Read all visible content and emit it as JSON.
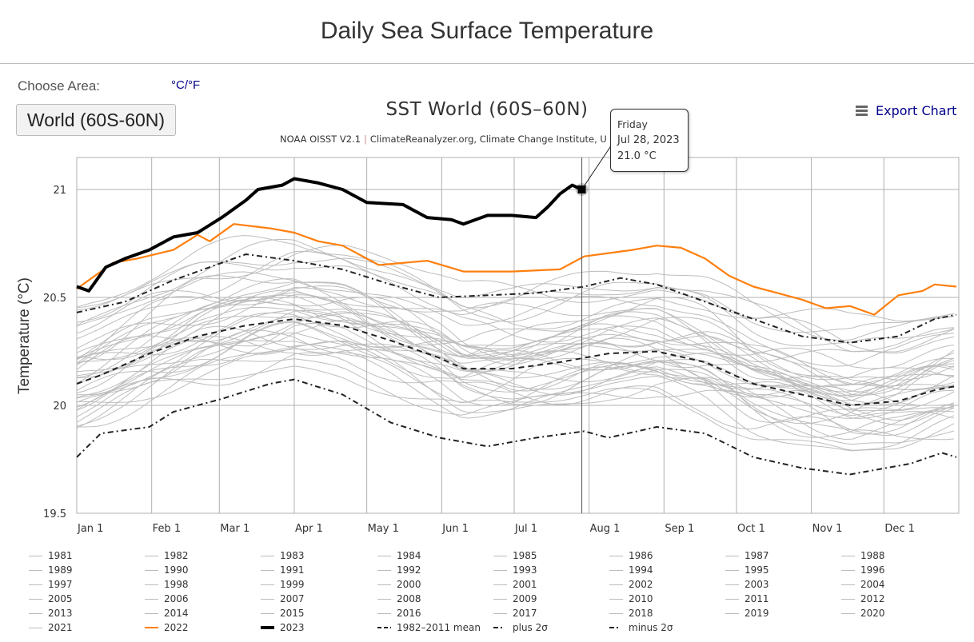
{
  "page": {
    "title": "Daily Sea Surface Temperature",
    "choose_area_label": "Choose Area:",
    "unit_toggle": "°C/°F",
    "area_button": "World (60S-60N)",
    "export_label": "Export Chart"
  },
  "tooltip": {
    "weekday": "Friday",
    "date": "Jul 28, 2023",
    "value": "21.0 °C",
    "day_of_year": 209,
    "temperature": 21.0
  },
  "colors": {
    "gray_years": "#bdbdbd",
    "year_2022": "#ff7f0e",
    "year_2023": "#000000",
    "stat_lines": "#222222",
    "grid": "#b0b0b0"
  },
  "chart_data": {
    "type": "line",
    "title": "SST World (60S–60N)",
    "subtitle_parts": [
      "NOAA OISST V2.1",
      "ClimateReanalyzer.org, Climate Change Institute, U"
    ],
    "xlabel": "",
    "ylabel": "Temperature (°C)",
    "ylim": [
      19.5,
      21.15
    ],
    "xlim_day_of_year": [
      0,
      365
    ],
    "y_ticks": [
      19.5,
      20,
      20.5,
      21
    ],
    "y_tick_labels": [
      "19.5",
      "20",
      "20.5",
      "21"
    ],
    "x_ticks": [
      {
        "label": "Jan 1",
        "day": 0
      },
      {
        "label": "Feb 1",
        "day": 31
      },
      {
        "label": "Mar 1",
        "day": 59
      },
      {
        "label": "Apr 1",
        "day": 90
      },
      {
        "label": "May 1",
        "day": 120
      },
      {
        "label": "Jun 1",
        "day": 151
      },
      {
        "label": "Jul 1",
        "day": 181
      },
      {
        "label": "Aug 1",
        "day": 212
      },
      {
        "label": "Sep 1",
        "day": 243
      },
      {
        "label": "Oct 1",
        "day": 273
      },
      {
        "label": "Nov 1",
        "day": 304
      },
      {
        "label": "Dec 1",
        "day": 334
      }
    ],
    "grid": true,
    "legend_position": "bottom",
    "series": [
      {
        "name": "2023",
        "style": "solid-thick",
        "color": "#000000",
        "points": [
          [
            0,
            20.55
          ],
          [
            5,
            20.53
          ],
          [
            12,
            20.64
          ],
          [
            20,
            20.68
          ],
          [
            30,
            20.72
          ],
          [
            40,
            20.78
          ],
          [
            50,
            20.8
          ],
          [
            60,
            20.87
          ],
          [
            70,
            20.95
          ],
          [
            75,
            21.0
          ],
          [
            85,
            21.02
          ],
          [
            90,
            21.05
          ],
          [
            100,
            21.03
          ],
          [
            110,
            21.0
          ],
          [
            120,
            20.94
          ],
          [
            135,
            20.93
          ],
          [
            145,
            20.87
          ],
          [
            155,
            20.86
          ],
          [
            160,
            20.84
          ],
          [
            170,
            20.88
          ],
          [
            180,
            20.88
          ],
          [
            190,
            20.87
          ],
          [
            195,
            20.92
          ],
          [
            200,
            20.98
          ],
          [
            205,
            21.02
          ],
          [
            209,
            21.0
          ]
        ]
      },
      {
        "name": "2022",
        "style": "solid",
        "color": "#ff7f0e",
        "points": [
          [
            0,
            20.54
          ],
          [
            10,
            20.62
          ],
          [
            15,
            20.66
          ],
          [
            25,
            20.68
          ],
          [
            40,
            20.72
          ],
          [
            50,
            20.79
          ],
          [
            55,
            20.76
          ],
          [
            65,
            20.84
          ],
          [
            80,
            20.82
          ],
          [
            90,
            20.8
          ],
          [
            100,
            20.76
          ],
          [
            110,
            20.74
          ],
          [
            125,
            20.65
          ],
          [
            145,
            20.67
          ],
          [
            160,
            20.62
          ],
          [
            180,
            20.62
          ],
          [
            200,
            20.63
          ],
          [
            210,
            20.69
          ],
          [
            230,
            20.72
          ],
          [
            240,
            20.74
          ],
          [
            250,
            20.73
          ],
          [
            260,
            20.68
          ],
          [
            270,
            20.6
          ],
          [
            280,
            20.55
          ],
          [
            290,
            20.52
          ],
          [
            300,
            20.49
          ],
          [
            310,
            20.45
          ],
          [
            320,
            20.46
          ],
          [
            330,
            20.42
          ],
          [
            340,
            20.51
          ],
          [
            350,
            20.53
          ],
          [
            355,
            20.56
          ],
          [
            364,
            20.55
          ]
        ]
      },
      {
        "name": "1982-2011 mean",
        "style": "dash",
        "color": "#222222",
        "points": [
          [
            0,
            20.1
          ],
          [
            10,
            20.14
          ],
          [
            30,
            20.24
          ],
          [
            50,
            20.32
          ],
          [
            70,
            20.37
          ],
          [
            90,
            20.4
          ],
          [
            110,
            20.37
          ],
          [
            130,
            20.3
          ],
          [
            150,
            20.22
          ],
          [
            160,
            20.17
          ],
          [
            180,
            20.17
          ],
          [
            200,
            20.2
          ],
          [
            220,
            20.24
          ],
          [
            240,
            20.25
          ],
          [
            260,
            20.2
          ],
          [
            280,
            20.1
          ],
          [
            300,
            20.05
          ],
          [
            320,
            20.0
          ],
          [
            340,
            20.02
          ],
          [
            355,
            20.07
          ],
          [
            364,
            20.09
          ]
        ]
      },
      {
        "name": "plus 2σ",
        "style": "dashdot",
        "color": "#222222",
        "points": [
          [
            0,
            20.43
          ],
          [
            20,
            20.48
          ],
          [
            40,
            20.58
          ],
          [
            60,
            20.66
          ],
          [
            70,
            20.7
          ],
          [
            90,
            20.67
          ],
          [
            110,
            20.63
          ],
          [
            130,
            20.56
          ],
          [
            150,
            20.5
          ],
          [
            170,
            20.51
          ],
          [
            190,
            20.52
          ],
          [
            210,
            20.55
          ],
          [
            225,
            20.59
          ],
          [
            240,
            20.56
          ],
          [
            260,
            20.48
          ],
          [
            280,
            20.4
          ],
          [
            300,
            20.32
          ],
          [
            320,
            20.29
          ],
          [
            340,
            20.32
          ],
          [
            355,
            20.4
          ],
          [
            364,
            20.42
          ]
        ]
      },
      {
        "name": "minus 2σ",
        "style": "dashdot",
        "color": "#222222",
        "points": [
          [
            0,
            19.76
          ],
          [
            10,
            19.87
          ],
          [
            30,
            19.9
          ],
          [
            40,
            19.97
          ],
          [
            60,
            20.03
          ],
          [
            80,
            20.1
          ],
          [
            90,
            20.12
          ],
          [
            110,
            20.05
          ],
          [
            130,
            19.92
          ],
          [
            150,
            19.85
          ],
          [
            170,
            19.81
          ],
          [
            190,
            19.85
          ],
          [
            210,
            19.88
          ],
          [
            220,
            19.85
          ],
          [
            240,
            19.9
          ],
          [
            260,
            19.87
          ],
          [
            280,
            19.76
          ],
          [
            300,
            19.71
          ],
          [
            320,
            19.68
          ],
          [
            330,
            19.7
          ],
          [
            345,
            19.73
          ],
          [
            358,
            19.78
          ],
          [
            364,
            19.76
          ]
        ]
      }
    ],
    "gray_years": {
      "years": [
        1981,
        1982,
        1983,
        1984,
        1985,
        1986,
        1987,
        1988,
        1989,
        1990,
        1991,
        1992,
        1993,
        1994,
        1995,
        1996,
        1997,
        1998,
        1999,
        2000,
        2001,
        2002,
        2003,
        2004,
        2005,
        2006,
        2007,
        2008,
        2009,
        2010,
        2011,
        2012,
        2013,
        2014,
        2015,
        2016,
        2017,
        2018,
        2019,
        2020,
        2021
      ],
      "anomaly_vs_mean": [
        -0.15,
        -0.12,
        -0.05,
        -0.2,
        -0.18,
        -0.14,
        -0.02,
        -0.05,
        -0.16,
        -0.06,
        -0.08,
        -0.1,
        -0.09,
        -0.07,
        0.0,
        -0.05,
        0.08,
        0.12,
        -0.04,
        -0.02,
        0.06,
        0.08,
        0.1,
        0.07,
        0.11,
        0.1,
        0.04,
        0.02,
        0.12,
        0.16,
        0.06,
        0.1,
        0.14,
        0.2,
        0.28,
        0.35,
        0.3,
        0.25,
        0.33,
        0.32,
        0.22
      ]
    },
    "legend": [
      [
        "1981",
        "1982",
        "1983",
        "1984",
        "1985",
        "1986",
        "1987",
        "1988"
      ],
      [
        "1989",
        "1990",
        "1991",
        "1992",
        "1993",
        "1994",
        "1995",
        "1996"
      ],
      [
        "1997",
        "1998",
        "1999",
        "2000",
        "2001",
        "2002",
        "2003",
        "2004"
      ],
      [
        "2005",
        "2006",
        "2007",
        "2008",
        "2009",
        "2010",
        "2011",
        "2012"
      ],
      [
        "2013",
        "2014",
        "2015",
        "2016",
        "2017",
        "2018",
        "2019",
        "2020"
      ],
      [
        "2021",
        "2022",
        "2023",
        "1982–2011 mean",
        "plus 2σ",
        "minus 2σ"
      ]
    ]
  }
}
